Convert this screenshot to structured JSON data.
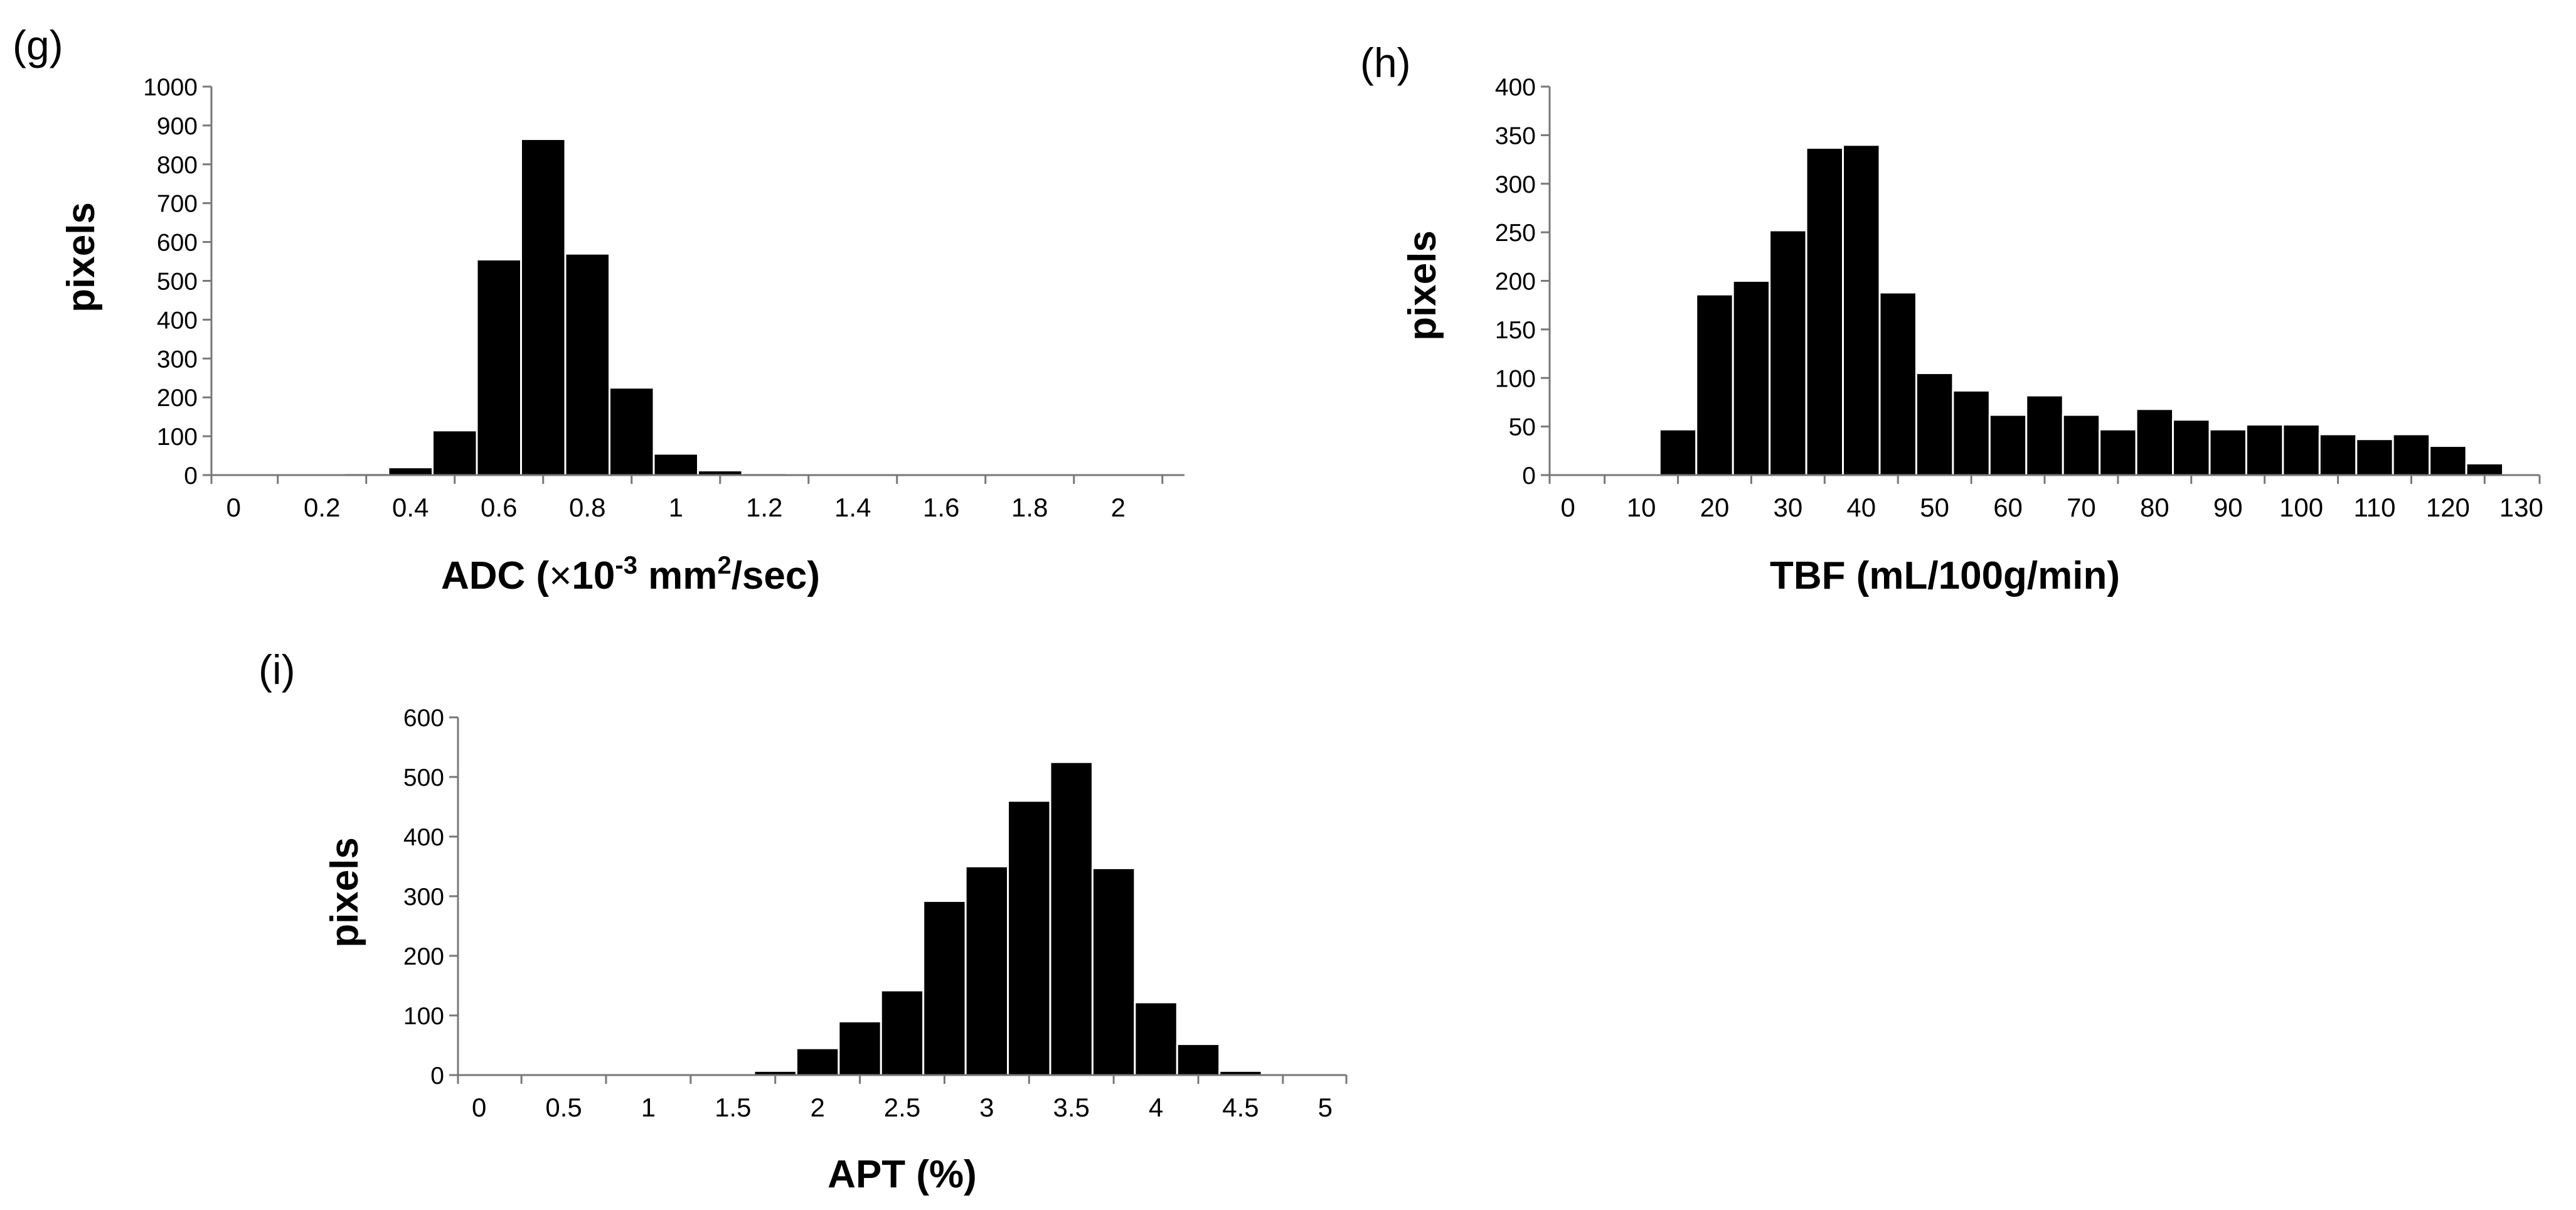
{
  "chart_data": [
    {
      "type": "bar",
      "panel_label": "(g)",
      "title": "",
      "ylabel": "pixels",
      "xlabel": "ADC (×10⁻³ mm²/sec)",
      "xlabel_parts": {
        "a": "ADC (",
        "times": "×",
        "b": "10",
        "exp": "-3",
        "c": " mm",
        "sq": "2",
        "d": "/sec)"
      },
      "ylim": [
        0,
        1000
      ],
      "yticks": [
        "0",
        "100",
        "200",
        "300",
        "400",
        "500",
        "600",
        "700",
        "800",
        "900",
        "1000"
      ],
      "xlim": [
        -0.05,
        2.15
      ],
      "xtick_values": [
        0,
        0.2,
        0.4,
        0.6,
        0.8,
        1,
        1.2,
        1.4,
        1.6,
        1.8,
        2
      ],
      "xtick_labels": [
        "0",
        "0.2",
        "0.4",
        "0.6",
        "0.8",
        "1",
        "1.2",
        "1.4",
        "1.6",
        "1.8",
        "2"
      ],
      "bin_width": 0.1,
      "bin_starts": [
        0.25,
        0.35,
        0.45,
        0.55,
        0.65,
        0.75,
        0.85,
        0.95,
        1.05,
        1.15
      ],
      "values": [
        5,
        20,
        115,
        555,
        865,
        570,
        225,
        55,
        12,
        5
      ]
    },
    {
      "type": "bar",
      "panel_label": "(h)",
      "title": "",
      "ylabel": "pixels",
      "xlabel": "TBF (mL/100g/min)",
      "ylim": [
        0,
        400
      ],
      "yticks": [
        "0",
        "50",
        "100",
        "150",
        "200",
        "250",
        "300",
        "350",
        "400"
      ],
      "xlim": [
        -2.5,
        132.5
      ],
      "xtick_values": [
        0,
        10,
        20,
        30,
        40,
        50,
        60,
        70,
        80,
        90,
        100,
        110,
        120,
        130
      ],
      "xtick_labels": [
        "0",
        "10",
        "20",
        "30",
        "40",
        "50",
        "60",
        "70",
        "80",
        "90",
        "100",
        "110",
        "120",
        "130"
      ],
      "bin_width": 5,
      "bin_starts": [
        12.5,
        17.5,
        22.5,
        27.5,
        32.5,
        37.5,
        42.5,
        47.5,
        52.5,
        57.5,
        62.5,
        67.5,
        72.5,
        77.5,
        82.5,
        87.5,
        92.5,
        97.5,
        102.5,
        107.5,
        112.5,
        117.5,
        122.5
      ],
      "values": [
        47,
        186,
        200,
        252,
        337,
        340,
        188,
        105,
        87,
        62,
        82,
        62,
        47,
        68,
        57,
        47,
        52,
        52,
        42,
        37,
        42,
        30,
        12
      ]
    },
    {
      "type": "bar",
      "panel_label": "(i)",
      "title": "",
      "ylabel": "pixels",
      "xlabel": "APT (%)",
      "ylim": [
        0,
        600
      ],
      "yticks": [
        "0",
        "100",
        "200",
        "300",
        "400",
        "500",
        "600"
      ],
      "xlim": [
        -0.125,
        5.125
      ],
      "xtick_values": [
        0,
        0.5,
        1,
        1.5,
        2,
        2.5,
        3,
        3.5,
        4,
        4.5,
        5
      ],
      "xtick_labels": [
        "0",
        "0.5",
        "1",
        "1.5",
        "2",
        "2.5",
        "3",
        "3.5",
        "4",
        "4.5",
        "5"
      ],
      "bin_width": 0.25,
      "bin_starts": [
        1.625,
        1.875,
        2.125,
        2.375,
        2.625,
        2.875,
        3.125,
        3.375,
        3.625,
        3.875,
        4.125,
        4.375,
        4.625
      ],
      "values": [
        7,
        45,
        90,
        142,
        292,
        350,
        460,
        525,
        347,
        122,
        52,
        7,
        3
      ]
    }
  ]
}
